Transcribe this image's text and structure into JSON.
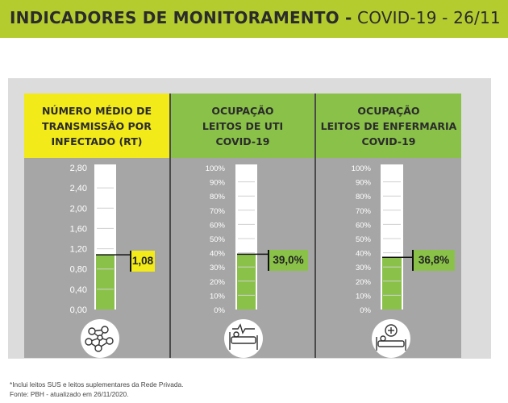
{
  "header": {
    "title_strong": "INDICADORES DE MONITORAMENTO -",
    "title_light": " COVID-19 - 26/11"
  },
  "colors": {
    "header_bg": "#b5cc2f",
    "rt_head": "#f2ea19",
    "green_head": "#8ac249",
    "fill_green": "#8ac249",
    "body_gray": "#a6a6a6"
  },
  "chart_data": [
    {
      "type": "gauge",
      "title": "NÚMERO MÉDIO DE\nTRANSMISSÃO POR\nINFECTADO (RT)",
      "value": 1.08,
      "value_label": "1,08",
      "ylim": [
        0,
        2.8
      ],
      "ticks": [
        "2,80",
        "2,40",
        "2,00",
        "1,60",
        "1,20",
        "0,80",
        "0,40",
        "0,00"
      ],
      "tick_values": [
        2.8,
        2.4,
        2.0,
        1.6,
        1.2,
        0.8,
        0.4,
        0.0
      ],
      "callout_color": "#f2ea19",
      "icon": "network-virus-icon"
    },
    {
      "type": "gauge",
      "title": "OCUPAÇÃO\nLEITOS DE UTI\nCOVID-19",
      "value": 39.0,
      "value_label": "39,0%",
      "ylim": [
        0,
        100
      ],
      "ticks": [
        "100%",
        "90%",
        "80%",
        "70%",
        "60%",
        "50%",
        "40%",
        "30%",
        "20%",
        "10%",
        "0%"
      ],
      "tick_values": [
        100,
        90,
        80,
        70,
        60,
        50,
        40,
        30,
        20,
        10,
        0
      ],
      "callout_color": "#8ac249",
      "icon": "icu-bed-icon"
    },
    {
      "type": "gauge",
      "title": "OCUPAÇÃO\nLEITOS DE ENFERMARIA\nCOVID-19",
      "value": 36.8,
      "value_label": "36,8%",
      "ylim": [
        0,
        100
      ],
      "ticks": [
        "100%",
        "90%",
        "80%",
        "70%",
        "60%",
        "50%",
        "40%",
        "30%",
        "20%",
        "10%",
        "0%"
      ],
      "tick_values": [
        100,
        90,
        80,
        70,
        60,
        50,
        40,
        30,
        20,
        10,
        0
      ],
      "callout_color": "#8ac249",
      "icon": "ward-bed-icon"
    }
  ],
  "footer": {
    "note": "*Inclui leitos SUS e leitos suplementares da Rede Privada.",
    "source": "Fonte: PBH - atualizado em 26/11/2020."
  }
}
